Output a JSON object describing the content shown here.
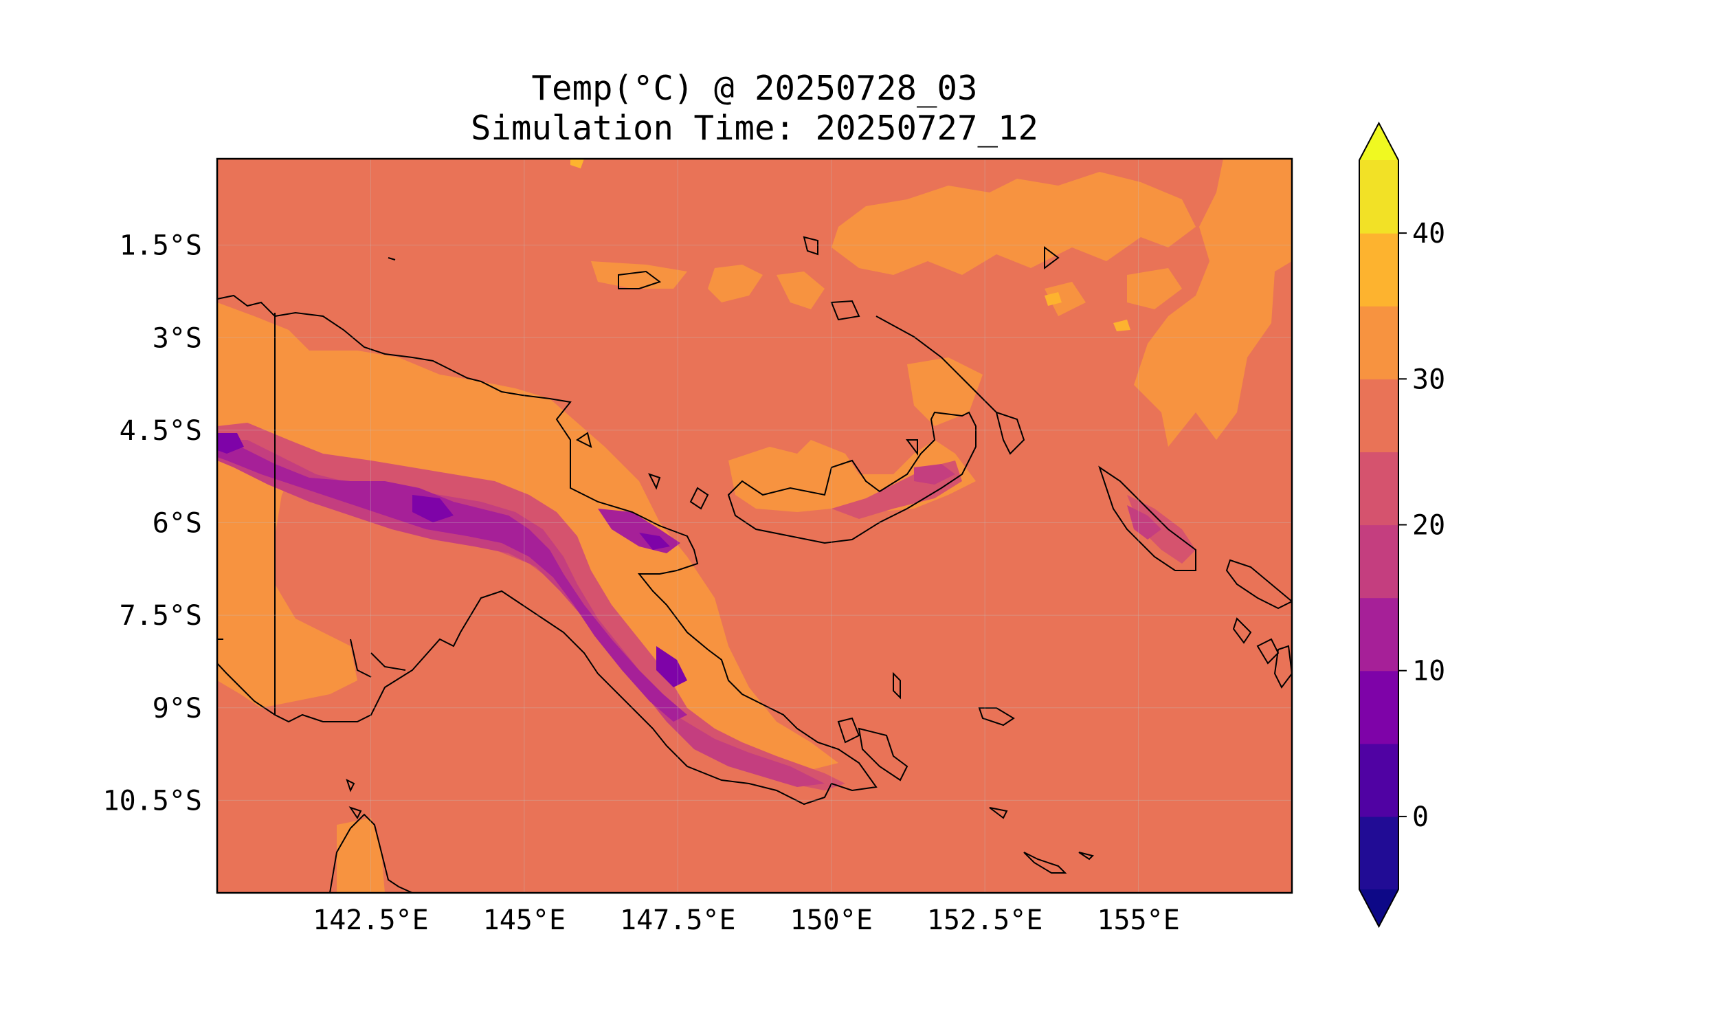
{
  "title": {
    "line1": "Temp(°C) @ 20250728_03",
    "line2": "Simulation Time: 20250727_12"
  },
  "map": {
    "lon_range": [
      140.0,
      157.5
    ],
    "lat_range": [
      -12.0,
      -0.1
    ],
    "x_ticks": [
      {
        "value": 142.5,
        "label": "142.5°E"
      },
      {
        "value": 145,
        "label": "145°E"
      },
      {
        "value": 147.5,
        "label": "147.5°E"
      },
      {
        "value": 150,
        "label": "150°E"
      },
      {
        "value": 152.5,
        "label": "152.5°E"
      },
      {
        "value": 155,
        "label": "155°E"
      }
    ],
    "y_ticks": [
      {
        "value": -1.5,
        "label": "1.5°S"
      },
      {
        "value": -3,
        "label": "3°S"
      },
      {
        "value": -4.5,
        "label": "4.5°S"
      },
      {
        "value": -6,
        "label": "6°S"
      },
      {
        "value": -7.5,
        "label": "7.5°S"
      },
      {
        "value": -9,
        "label": "9°S"
      },
      {
        "value": -10.5,
        "label": "10.5°S"
      }
    ],
    "background_color": "#e97357"
  },
  "colorbar": {
    "extend": "both",
    "range": [
      -5,
      45
    ],
    "levels": [
      -5,
      0,
      5,
      10,
      15,
      20,
      25,
      30,
      35,
      40,
      45
    ],
    "colors": [
      "#210c95",
      "#5002a3",
      "#7e03a8",
      "#a62098",
      "#c43e7f",
      "#d5536e",
      "#e97357",
      "#f79340",
      "#fdb32f",
      "#f2e126"
    ],
    "under_color": "#0d0887",
    "over_color": "#f0f921",
    "ticks": [
      {
        "value": 0,
        "label": "0"
      },
      {
        "value": 10,
        "label": "10"
      },
      {
        "value": 20,
        "label": "20"
      },
      {
        "value": 30,
        "label": "30"
      },
      {
        "value": 40,
        "label": "40"
      }
    ]
  }
}
